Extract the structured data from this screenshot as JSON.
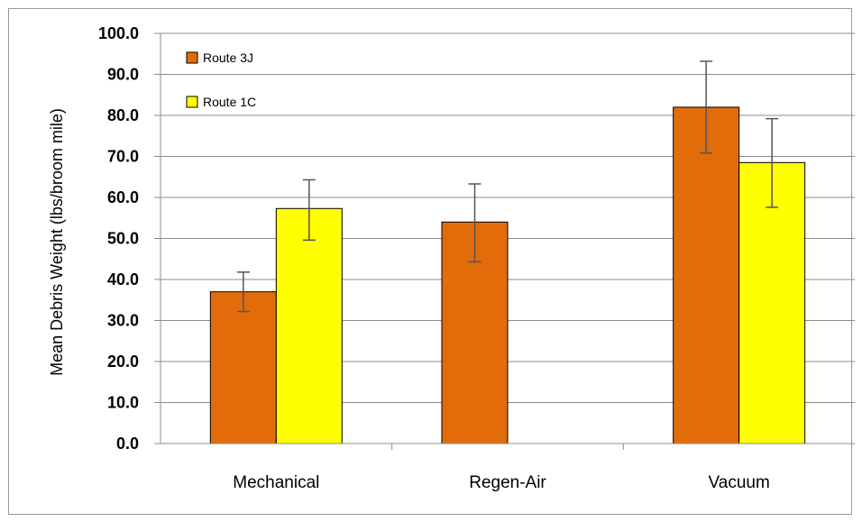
{
  "chart_data": {
    "type": "bar",
    "title": "",
    "xlabel": "",
    "ylabel": "Mean Debris Weight (lbs/broom mile)",
    "ylim": [
      0,
      100
    ],
    "ytick_step": 10,
    "ytick_labels": [
      "0.0",
      "10.0",
      "20.0",
      "30.0",
      "40.0",
      "50.0",
      "60.0",
      "70.0",
      "80.0",
      "90.0",
      "100.0"
    ],
    "categories": [
      "Mechanical",
      "Regen-Air",
      "Vacuum"
    ],
    "grid": true,
    "legend_position": "top-left",
    "series": [
      {
        "name": "Route 3J",
        "color": "#e36c0a",
        "values": [
          37.0,
          54.0,
          82.0
        ],
        "error_low": [
          32.2,
          44.3,
          70.8
        ],
        "error_high": [
          41.8,
          63.3,
          93.2
        ]
      },
      {
        "name": "Route 1C",
        "color": "#ffff00",
        "values": [
          57.3,
          null,
          68.5
        ],
        "error_low": [
          49.6,
          null,
          57.6
        ],
        "error_high": [
          64.3,
          null,
          79.2
        ]
      }
    ]
  }
}
